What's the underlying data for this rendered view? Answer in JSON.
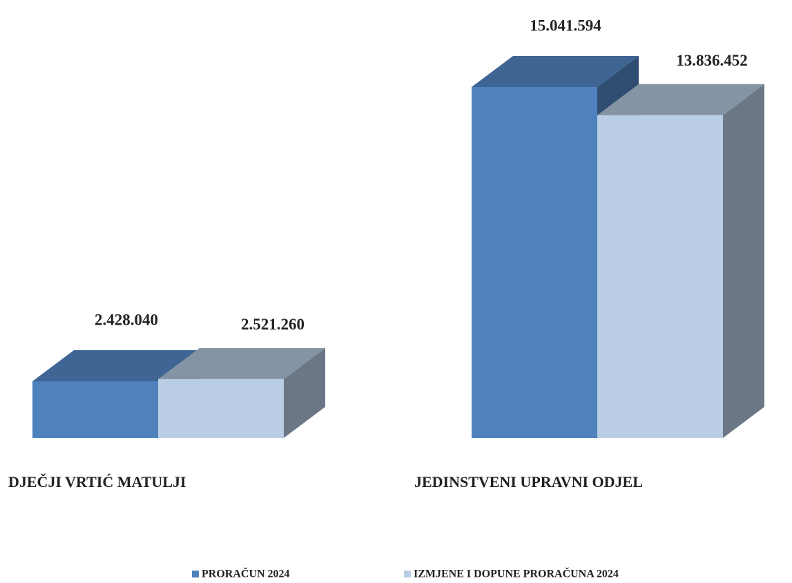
{
  "chart_data": {
    "type": "bar3d",
    "categories": [
      "DJEČJI VRTIĆ MATULJI",
      "JEDINSTVENI UPRAVNI ODJEL"
    ],
    "series": [
      {
        "name": "PRORAČUN 2024",
        "color": "#4f81bd",
        "values": [
          2428040,
          15041594
        ],
        "value_labels": [
          "2.428.040",
          "15.041.594"
        ]
      },
      {
        "name": "IZMJENE I DOPUNE PRORAČUNA 2024",
        "color": "#b9cde5",
        "values": [
          2521260,
          13836452
        ],
        "value_labels": [
          "2.521.260",
          "13.836.452"
        ]
      }
    ],
    "legend": "bottom"
  }
}
